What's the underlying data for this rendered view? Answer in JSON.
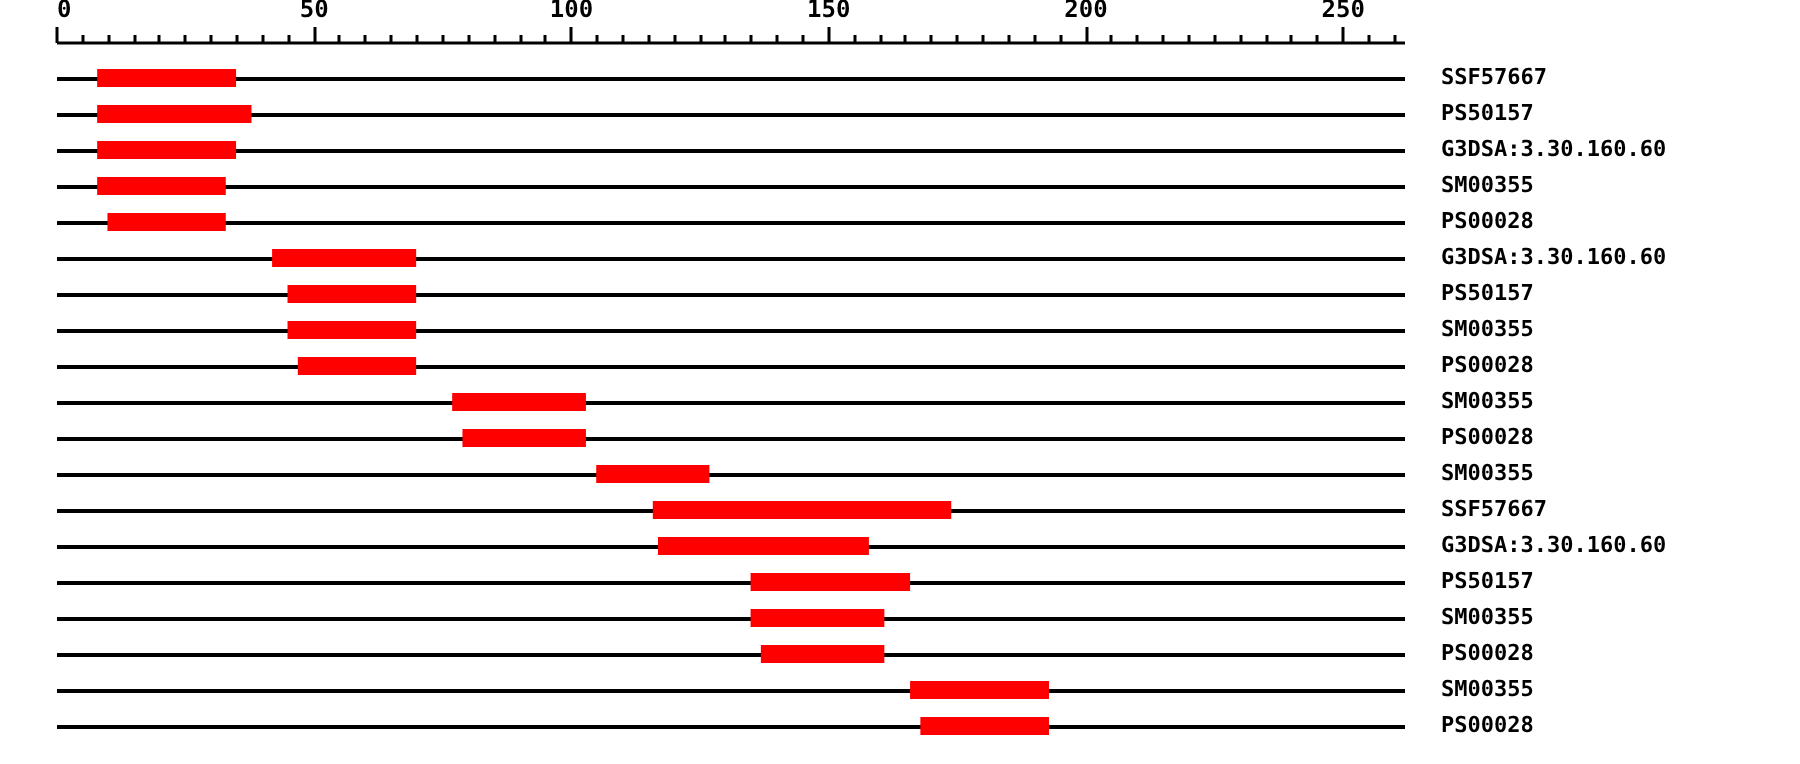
{
  "chart_data": {
    "type": "bar",
    "orientation": "horizontal",
    "categories": [
      "SSF57667",
      "PS50157",
      "G3DSA:3.30.160.60",
      "SM00355",
      "PS00028",
      "G3DSA:3.30.160.60",
      "PS50157",
      "SM00355",
      "PS00028",
      "SM00355",
      "PS00028",
      "SM00355",
      "SSF57667",
      "G3DSA:3.30.160.60",
      "PS50157",
      "SM00355",
      "PS00028",
      "SM00355",
      "PS00028"
    ],
    "base": [
      8,
      8,
      8,
      8,
      10,
      42,
      45,
      45,
      47,
      77,
      79,
      105,
      116,
      117,
      135,
      135,
      137,
      166,
      168
    ],
    "values": [
      27,
      30,
      27,
      25,
      23,
      28,
      25,
      25,
      23,
      26,
      24,
      22,
      58,
      41,
      31,
      26,
      24,
      27,
      25
    ],
    "color": "#ff0000",
    "xlim": [
      0,
      262
    ],
    "xticks": [
      0,
      {
        "value": 5,
        "label": null
      },
      {
        "value": 10,
        "label": null
      },
      {
        "value": 15,
        "label": null
      },
      {
        "value": 20,
        "label": null
      },
      {
        "value": 25,
        "label": null
      },
      {
        "value": 30,
        "label": null
      },
      {
        "value": 35,
        "label": null
      },
      {
        "value": 40,
        "label": null
      },
      {
        "value": 45,
        "label": null
      },
      50,
      {
        "value": 55,
        "label": null
      },
      {
        "value": 60,
        "label": null
      },
      {
        "value": 65,
        "label": null
      },
      {
        "value": 70,
        "label": null
      },
      {
        "value": 75,
        "label": null
      },
      {
        "value": 80,
        "label": null
      },
      {
        "value": 85,
        "label": null
      },
      {
        "value": 90,
        "label": null
      },
      {
        "value": 95,
        "label": null
      },
      100,
      {
        "value": 105,
        "label": null
      },
      {
        "value": 110,
        "label": null
      },
      {
        "value": 115,
        "label": null
      },
      {
        "value": 120,
        "label": null
      },
      {
        "value": 125,
        "label": null
      },
      {
        "value": 130,
        "label": null
      },
      {
        "value": 135,
        "label": null
      },
      {
        "value": 140,
        "label": null
      },
      {
        "value": 145,
        "label": null
      },
      150,
      {
        "value": 155,
        "label": null
      },
      {
        "value": 160,
        "label": null
      },
      {
        "value": 165,
        "label": null
      },
      {
        "value": 170,
        "label": null
      },
      {
        "value": 175,
        "label": null
      },
      {
        "value": 180,
        "label": null
      },
      {
        "value": 185,
        "label": null
      },
      {
        "value": 190,
        "label": null
      },
      {
        "value": 195,
        "label": null
      },
      200,
      {
        "value": 205,
        "label": null
      },
      {
        "value": 210,
        "label": null
      },
      {
        "value": 215,
        "label": null
      },
      {
        "value": 220,
        "label": null
      },
      {
        "value": 225,
        "label": null
      },
      {
        "value": 230,
        "label": null
      },
      {
        "value": 235,
        "label": null
      },
      {
        "value": 240,
        "label": null
      },
      {
        "value": 245,
        "label": null
      },
      250,
      {
        "value": 255,
        "label": null
      },
      {
        "value": 260,
        "label": null
      }
    ],
    "grid": "y"
  }
}
